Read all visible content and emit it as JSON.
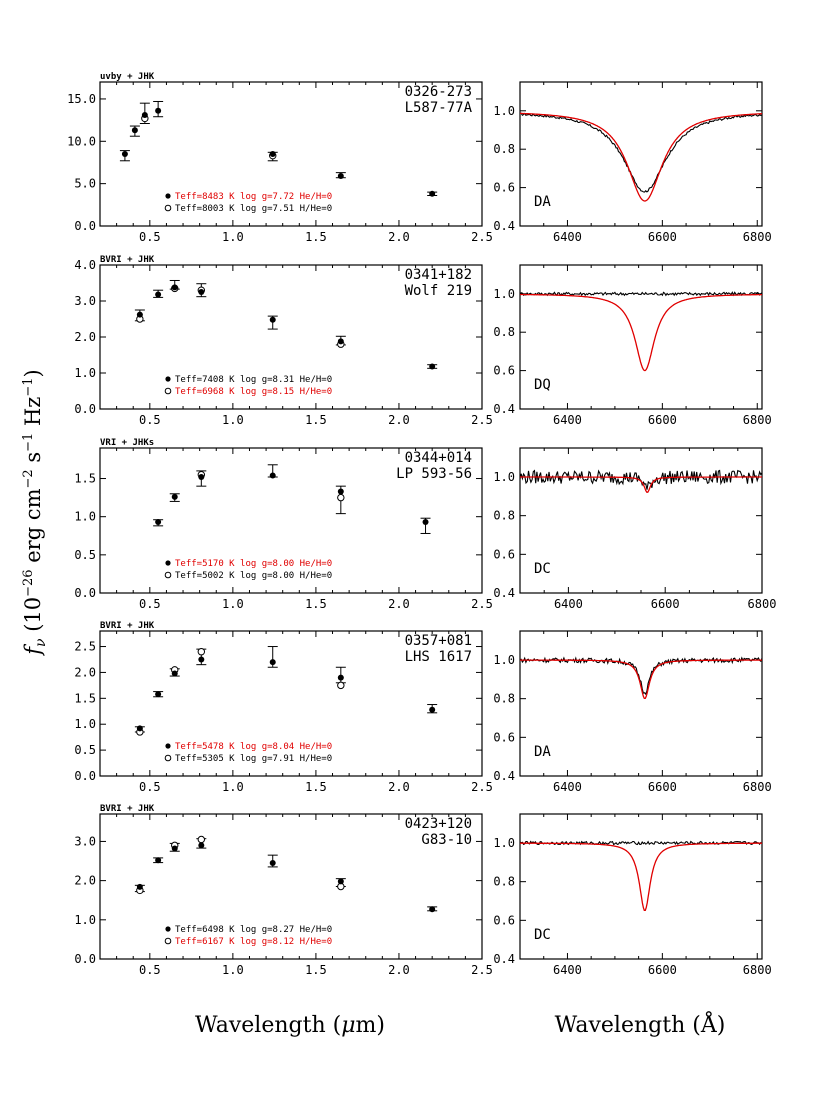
{
  "figure": {
    "ylabel_left": "f_ν (10^-26 erg cm^-2 s^-1 Hz^-1)",
    "xlabel_left": "Wavelength (μm)",
    "xlabel_right": "Wavelength (Å)"
  },
  "colors": {
    "model_red": "#e00000",
    "ink": "#000000"
  },
  "chart_data": [
    {
      "type": "scatter",
      "kind": "photometry",
      "filters_label": "uvby + JHK",
      "star_id": "0326-273",
      "star_name": "L587-77A",
      "xlim": [
        0.2,
        2.5
      ],
      "ylim": [
        0.0,
        17.0
      ],
      "xticks": [
        "0.5",
        "1.0",
        "1.5",
        "2.0",
        "2.5"
      ],
      "yticks": [
        "0.0",
        "5.0",
        "10.0",
        "15.0"
      ],
      "ytick_values": [
        0,
        5,
        10,
        15
      ],
      "observed": {
        "x": [
          0.35,
          0.41,
          0.47,
          0.55,
          1.24,
          1.65,
          2.2
        ],
        "y": [
          8.3,
          11.2,
          13.3,
          13.8,
          8.2,
          6.0,
          3.8
        ],
        "err": [
          0.6,
          0.6,
          1.2,
          0.9,
          0.5,
          0.3,
          0.2
        ]
      },
      "model_filled": {
        "x": [
          0.35,
          0.41,
          0.47,
          0.55,
          1.24,
          1.65,
          2.2
        ],
        "y": [
          8.5,
          11.3,
          13.1,
          13.6,
          8.5,
          5.9,
          3.8
        ]
      },
      "model_open": {
        "x": [
          0.47,
          1.24
        ],
        "y": [
          12.7,
          8.3
        ]
      },
      "legend": [
        {
          "marker": "filled",
          "text": "Teff=8483 K  log g=7.72  He/H=0",
          "red": true
        },
        {
          "marker": "open",
          "text": "Teff=8003 K  log g=7.51  H/He=0",
          "red": false
        }
      ]
    },
    {
      "type": "scatter",
      "kind": "photometry",
      "filters_label": "BVRI + JHK",
      "star_id": "0341+182",
      "star_name": "Wolf 219",
      "xlim": [
        0.2,
        2.5
      ],
      "ylim": [
        0.0,
        4.0
      ],
      "xticks": [
        "0.5",
        "1.0",
        "1.5",
        "2.0",
        "2.5"
      ],
      "yticks": [
        "0.0",
        "1.0",
        "2.0",
        "3.0",
        "4.0"
      ],
      "ytick_values": [
        0,
        1,
        2,
        3,
        4
      ],
      "observed": {
        "x": [
          0.44,
          0.55,
          0.65,
          0.81,
          1.24,
          1.65,
          2.2
        ],
        "y": [
          2.6,
          3.2,
          3.45,
          3.3,
          2.4,
          1.9,
          1.18
        ],
        "err": [
          0.15,
          0.1,
          0.12,
          0.18,
          0.18,
          0.12,
          0.05
        ]
      },
      "model_filled": {
        "x": [
          0.44,
          0.55,
          0.65,
          0.81,
          1.24,
          1.65,
          2.2
        ],
        "y": [
          2.62,
          3.18,
          3.38,
          3.25,
          2.48,
          1.88,
          1.18
        ]
      },
      "model_open": {
        "x": [
          0.44,
          0.65,
          0.81,
          1.65
        ],
        "y": [
          2.5,
          3.35,
          3.3,
          1.8
        ]
      },
      "legend": [
        {
          "marker": "filled",
          "text": "Teff=7408 K  log g=8.31  He/H=0",
          "red": false
        },
        {
          "marker": "open",
          "text": "Teff=6968 K  log g=8.15  H/He=0",
          "red": true
        }
      ]
    },
    {
      "type": "scatter",
      "kind": "photometry",
      "filters_label": "VRI + JHKs",
      "star_id": "0344+014",
      "star_name": "LP 593-56",
      "xlim": [
        0.2,
        2.5
      ],
      "ylim": [
        0.0,
        1.9
      ],
      "xticks": [
        "0.5",
        "1.0",
        "1.5",
        "2.0",
        "2.5"
      ],
      "yticks": [
        "0.0",
        "0.5",
        "1.0",
        "1.5"
      ],
      "ytick_values": [
        0,
        0.5,
        1.0,
        1.5
      ],
      "observed": {
        "x": [
          0.55,
          0.65,
          0.81,
          1.24,
          1.65,
          2.16
        ],
        "y": [
          0.92,
          1.25,
          1.5,
          1.6,
          1.22,
          0.88
        ],
        "err": [
          0.04,
          0.05,
          0.1,
          0.08,
          0.18,
          0.1
        ]
      },
      "model_filled": {
        "x": [
          0.55,
          0.65,
          0.81,
          1.24,
          1.65,
          2.16
        ],
        "y": [
          0.93,
          1.26,
          1.52,
          1.54,
          1.33,
          0.93
        ]
      },
      "model_open": {
        "x": [
          0.81,
          1.65
        ],
        "y": [
          1.55,
          1.25
        ]
      },
      "legend": [
        {
          "marker": "filled",
          "text": "Teff=5170 K  log g=8.00  He/H=0",
          "red": true
        },
        {
          "marker": "open",
          "text": "Teff=5002 K  log g=8.00  H/He=0",
          "red": false
        }
      ]
    },
    {
      "type": "scatter",
      "kind": "photometry",
      "filters_label": "BVRI + JHK",
      "star_id": "0357+081",
      "star_name": "LHS 1617",
      "xlim": [
        0.2,
        2.5
      ],
      "ylim": [
        0.0,
        2.8
      ],
      "xticks": [
        "0.5",
        "1.0",
        "1.5",
        "2.0",
        "2.5"
      ],
      "yticks": [
        "0.0",
        "0.5",
        "1.0",
        "1.5",
        "2.0",
        "2.5"
      ],
      "ytick_values": [
        0,
        0.5,
        1.0,
        1.5,
        2.0,
        2.5
      ],
      "observed": {
        "x": [
          0.44,
          0.55,
          0.65,
          0.81,
          1.24,
          1.65,
          2.2
        ],
        "y": [
          0.9,
          1.58,
          2.0,
          2.3,
          2.3,
          1.95,
          1.3
        ],
        "err": [
          0.05,
          0.05,
          0.07,
          0.15,
          0.2,
          0.15,
          0.08
        ]
      },
      "model_filled": {
        "x": [
          0.44,
          0.55,
          0.65,
          0.81,
          1.24,
          1.65,
          2.2
        ],
        "y": [
          0.92,
          1.58,
          1.98,
          2.25,
          2.2,
          1.9,
          1.28
        ]
      },
      "model_open": {
        "x": [
          0.44,
          0.65,
          0.81,
          1.65
        ],
        "y": [
          0.85,
          2.05,
          2.4,
          1.75
        ]
      },
      "legend": [
        {
          "marker": "filled",
          "text": "Teff=5478 K  log g=8.04  He/H=0",
          "red": true
        },
        {
          "marker": "open",
          "text": "Teff=5305 K  log g=7.91  H/He=0",
          "red": false
        }
      ]
    },
    {
      "type": "scatter",
      "kind": "photometry",
      "filters_label": "BVRI + JHK",
      "star_id": "0423+120",
      "star_name": "G83-10",
      "xlim": [
        0.2,
        2.5
      ],
      "ylim": [
        0.0,
        3.7
      ],
      "xticks": [
        "0.5",
        "1.0",
        "1.5",
        "2.0",
        "2.5"
      ],
      "yticks": [
        "0.0",
        "1.0",
        "2.0",
        "3.0"
      ],
      "ytick_values": [
        0,
        1,
        2,
        3
      ],
      "observed": {
        "x": [
          0.44,
          0.55,
          0.65,
          0.81,
          1.24,
          1.65,
          2.2
        ],
        "y": [
          1.8,
          2.52,
          2.85,
          2.95,
          2.5,
          1.95,
          1.28
        ],
        "err": [
          0.08,
          0.06,
          0.1,
          0.12,
          0.15,
          0.1,
          0.05
        ]
      },
      "model_filled": {
        "x": [
          0.44,
          0.55,
          0.65,
          0.81,
          1.24,
          1.65,
          2.2
        ],
        "y": [
          1.84,
          2.52,
          2.82,
          2.9,
          2.45,
          1.98,
          1.27
        ]
      },
      "model_open": {
        "x": [
          0.44,
          0.65,
          0.81,
          1.65
        ],
        "y": [
          1.75,
          2.9,
          3.05,
          1.85
        ]
      },
      "legend": [
        {
          "marker": "filled",
          "text": "Teff=6498 K  log g=8.27  He/H=0",
          "red": false
        },
        {
          "marker": "open",
          "text": "Teff=6167 K  log g=8.12  H/He=0",
          "red": true
        }
      ]
    },
    {
      "type": "line",
      "kind": "spectrum",
      "spectral_type": "DA",
      "xlim": [
        6300,
        6810
      ],
      "ylim": [
        0.4,
        1.15
      ],
      "xticks": [
        "6400",
        "6600",
        "6800"
      ],
      "xtick_values": [
        6400,
        6600,
        6800
      ],
      "yticks": [
        "0.4",
        "0.6",
        "0.8",
        "1.0"
      ],
      "ytick_values": [
        0.4,
        0.6,
        0.8,
        1.0
      ],
      "model": {
        "depth": 0.47,
        "width": 45,
        "center": 6563
      },
      "observed": {
        "depth": 0.42,
        "width": 55,
        "noise": 0.006
      }
    },
    {
      "type": "line",
      "kind": "spectrum",
      "spectral_type": "DQ",
      "xlim": [
        6300,
        6810
      ],
      "ylim": [
        0.4,
        1.15
      ],
      "xticks": [
        "6400",
        "6600",
        "6800"
      ],
      "xtick_values": [
        6400,
        6600,
        6800
      ],
      "yticks": [
        "0.4",
        "0.6",
        "0.8",
        "1.0"
      ],
      "ytick_values": [
        0.4,
        0.6,
        0.8,
        1.0
      ],
      "model": {
        "depth": 0.4,
        "width": 25,
        "center": 6563
      },
      "observed": {
        "depth": 0.0,
        "width": 20,
        "noise": 0.008
      }
    },
    {
      "type": "line",
      "kind": "spectrum",
      "spectral_type": "DC",
      "xlim": [
        6300,
        6800
      ],
      "ylim": [
        0.4,
        1.15
      ],
      "xticks": [
        "6400",
        "6600",
        "6800"
      ],
      "xtick_values": [
        6400,
        6600,
        6800
      ],
      "yticks": [
        "0.4",
        "0.6",
        "0.8",
        "1.0"
      ],
      "ytick_values": [
        0.4,
        0.6,
        0.8,
        1.0
      ],
      "model": {
        "depth": 0.08,
        "width": 8,
        "center": 6563
      },
      "observed": {
        "depth": 0.06,
        "width": 8,
        "noise": 0.035
      }
    },
    {
      "type": "line",
      "kind": "spectrum",
      "spectral_type": "DA",
      "xlim": [
        6300,
        6810
      ],
      "ylim": [
        0.4,
        1.15
      ],
      "xticks": [
        "6400",
        "6600",
        "6800"
      ],
      "xtick_values": [
        6400,
        6600,
        6800
      ],
      "yticks": [
        "0.4",
        "0.6",
        "0.8",
        "1.0"
      ],
      "ytick_values": [
        0.4,
        0.6,
        0.8,
        1.0
      ],
      "model": {
        "depth": 0.2,
        "width": 12,
        "center": 6563
      },
      "observed": {
        "depth": 0.17,
        "width": 12,
        "noise": 0.012
      }
    },
    {
      "type": "line",
      "kind": "spectrum",
      "spectral_type": "DC",
      "xlim": [
        6300,
        6810
      ],
      "ylim": [
        0.4,
        1.15
      ],
      "xticks": [
        "6400",
        "6600",
        "6800"
      ],
      "xtick_values": [
        6400,
        6600,
        6800
      ],
      "yticks": [
        "0.4",
        "0.6",
        "0.8",
        "1.0"
      ],
      "ytick_values": [
        0.4,
        0.6,
        0.8,
        1.0
      ],
      "model": {
        "depth": 0.35,
        "width": 14,
        "center": 6563
      },
      "observed": {
        "depth": 0.0,
        "width": 14,
        "noise": 0.008
      }
    }
  ]
}
